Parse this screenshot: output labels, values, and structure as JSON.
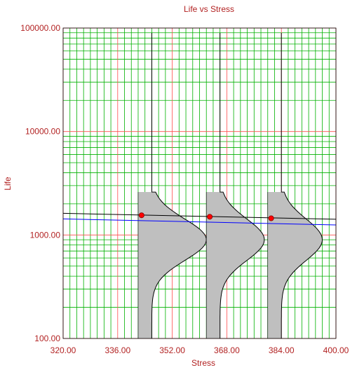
{
  "chart_data": {
    "type": "scatter",
    "title": "Life vs Stress",
    "xlabel": "Stress",
    "ylabel": "Life",
    "x_scale": "linear",
    "y_scale": "log",
    "xlim": [
      320,
      400
    ],
    "ylim": [
      100,
      100000
    ],
    "x_ticks": [
      "320.00",
      "336.00",
      "352.00",
      "368.00",
      "384.00",
      "400.00"
    ],
    "y_ticks": [
      "100.00",
      "1000.00",
      "10000.00",
      "100000.00"
    ],
    "grid": true,
    "colors": {
      "title": "#b22222",
      "major_grid": "#ff4d4d",
      "minor_grid": "#00b000",
      "black_line": "#000000",
      "blue_line": "#0000ff",
      "points": "#ff0000",
      "pdf_fill": "#bfbfbf"
    },
    "points": [
      {
        "x": 343,
        "y": 1550
      },
      {
        "x": 363,
        "y": 1500
      },
      {
        "x": 381,
        "y": 1450
      }
    ],
    "series": [
      {
        "x": [
          320,
          400
        ],
        "y": [
          1620,
          1420
        ],
        "color": "#000000"
      },
      {
        "x": [
          320,
          400
        ],
        "y": [
          1430,
          1250
        ],
        "color": "#0000ff"
      }
    ],
    "pdfs": [
      {
        "stress": 346,
        "stress_left": 342,
        "peak_life": 900,
        "peak_stress": 362
      },
      {
        "stress": 366,
        "stress_left": 362,
        "peak_life": 900,
        "peak_stress": 379
      },
      {
        "stress": 384,
        "stress_left": 380,
        "peak_life": 900,
        "peak_stress": 396
      }
    ]
  }
}
